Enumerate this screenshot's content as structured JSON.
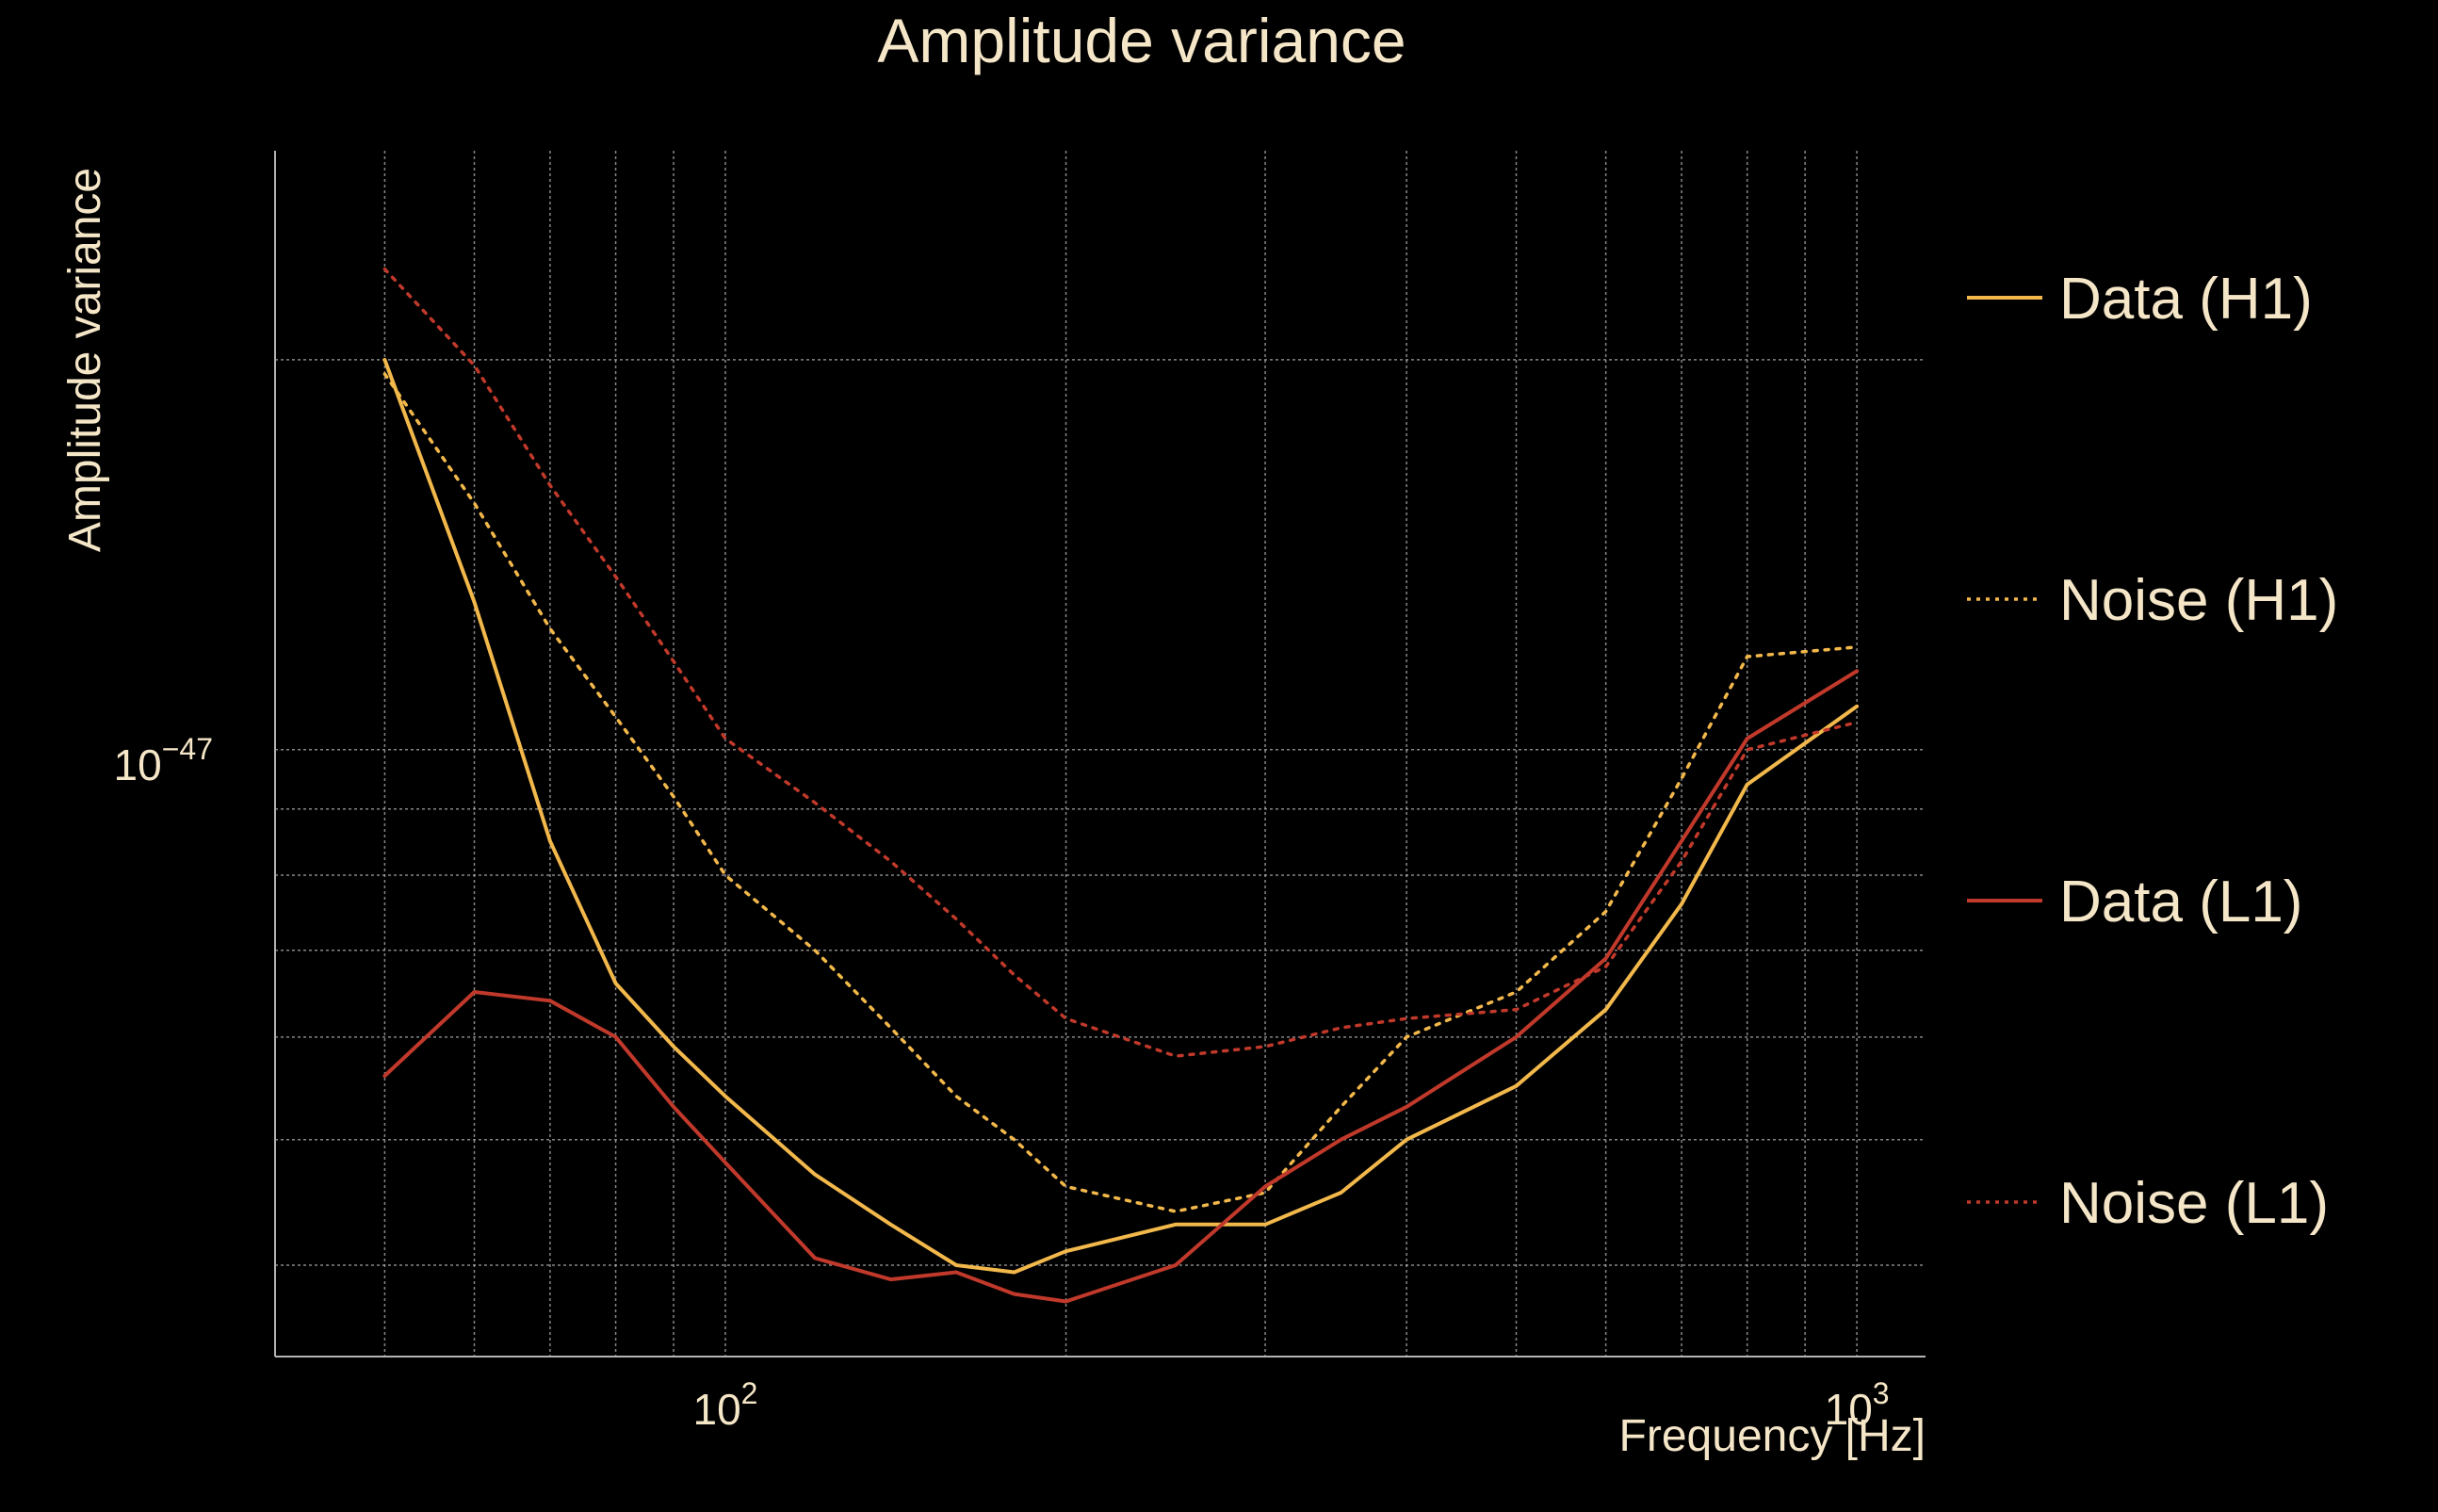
{
  "colors": {
    "background": "#000000",
    "text": "#f5e6c8",
    "grid": "#b4b4b4",
    "h1": "#f2b84b",
    "l1": "#c0392b"
  },
  "chart_data": {
    "type": "line",
    "title": "Amplitude variance",
    "xlabel": "Frequency [Hz]",
    "ylabel": "Amplitude variance",
    "x_scale": "log",
    "y_scale": "log",
    "xlim": [
      40,
      1150
    ],
    "ylim": [
      3.4e-48,
      2.9e-47
    ],
    "x_tick_labels": [
      {
        "value": 100,
        "base": "10",
        "exp": "2"
      },
      {
        "value": 1000,
        "base": "10",
        "exp": "3"
      }
    ],
    "y_tick_labels": [
      {
        "value": 1e-47,
        "base": "10",
        "exp": "−47"
      }
    ],
    "grid": true,
    "legend_position": "right",
    "x": [
      50,
      60,
      70,
      80,
      90,
      100,
      120,
      140,
      160,
      180,
      200,
      250,
      300,
      350,
      400,
      500,
      600,
      700,
      800,
      1000
    ],
    "series": [
      {
        "name": "Data (H1)",
        "style": "solid",
        "color": "#f2b84b",
        "values": [
          2e-47,
          1.3e-47,
          8.5e-48,
          6.6e-48,
          5.9e-48,
          5.4e-48,
          4.7e-48,
          4.3e-48,
          4e-48,
          3.95e-48,
          4.1e-48,
          4.3e-48,
          4.3e-48,
          4.55e-48,
          5e-48,
          5.5e-48,
          6.3e-48,
          7.6e-48,
          9.4e-48,
          1.08e-47
        ]
      },
      {
        "name": "Noise (H1)",
        "style": "dotted",
        "color": "#f2b84b",
        "values": [
          1.95e-47,
          1.55e-47,
          1.24e-47,
          1.06e-47,
          9.2e-48,
          8e-48,
          7e-48,
          6.1e-48,
          5.4e-48,
          5e-48,
          4.6e-48,
          4.4e-48,
          4.55e-48,
          5.3e-48,
          6e-48,
          6.5e-48,
          7.5e-48,
          9.5e-48,
          1.18e-47,
          1.2e-47
        ]
      },
      {
        "name": "Data (L1)",
        "style": "solid",
        "color": "#c0392b",
        "values": [
          5.6e-48,
          6.5e-48,
          6.4e-48,
          6e-48,
          5.3e-48,
          4.8e-48,
          4.05e-48,
          3.9e-48,
          3.95e-48,
          3.8e-48,
          3.75e-48,
          4e-48,
          4.6e-48,
          5e-48,
          5.3e-48,
          6e-48,
          6.9e-48,
          8.5e-48,
          1.02e-47,
          1.15e-47
        ]
      },
      {
        "name": "Noise (L1)",
        "style": "dotted",
        "color": "#c0392b",
        "values": [
          2.35e-47,
          1.98e-47,
          1.6e-47,
          1.36e-47,
          1.17e-47,
          1.02e-47,
          9.1e-48,
          8.2e-48,
          7.4e-48,
          6.7e-48,
          6.2e-48,
          5.8e-48,
          5.9e-48,
          6.1e-48,
          6.2e-48,
          6.3e-48,
          6.8e-48,
          8.2e-48,
          1e-47,
          1.05e-47
        ]
      }
    ]
  }
}
